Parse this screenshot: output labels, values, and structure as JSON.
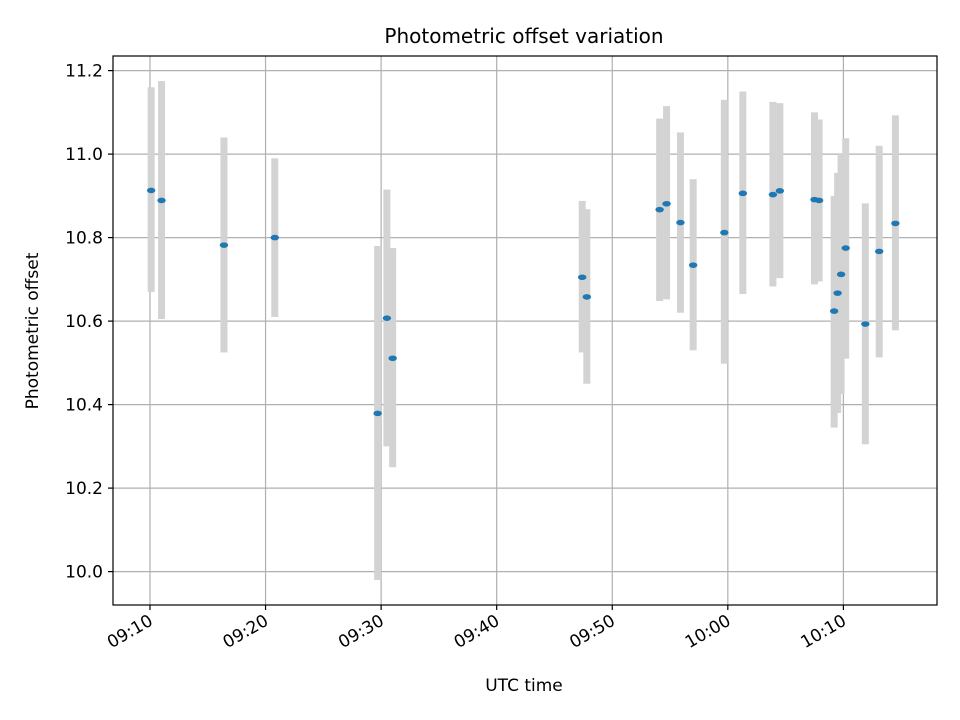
{
  "chart_data": {
    "type": "scatter",
    "title": "Photometric offset variation",
    "xlabel": "UTC time",
    "ylabel": "Photometric offset",
    "x_tick_labels": [
      "09:10",
      "09:20",
      "09:30",
      "09:40",
      "09:50",
      "10:00",
      "10:10"
    ],
    "x_ticks": [
      "09:10",
      "09:20",
      "09:30",
      "09:40",
      "09:50",
      "10:00",
      "10:10"
    ],
    "xlim": [
      "09:06.8",
      "10:18.1"
    ],
    "y_tick_labels": [
      "10.0",
      "10.2",
      "10.4",
      "10.6",
      "10.8",
      "11.0",
      "11.2"
    ],
    "y_ticks": [
      10.0,
      10.2,
      10.4,
      10.6,
      10.8,
      11.0,
      11.2
    ],
    "ylim": [
      9.92,
      11.235
    ],
    "grid": true,
    "colors": {
      "marker": "#1f77b4",
      "errorbar": "#d3d3d3",
      "grid": "#b0b0b0"
    },
    "series": [
      {
        "points": [
          {
            "x": "09:10.1",
            "y": 10.913,
            "low": 10.67,
            "high": 11.16
          },
          {
            "x": "09:11.0",
            "y": 10.889,
            "low": 10.605,
            "high": 11.175
          },
          {
            "x": "09:16.4",
            "y": 10.782,
            "low": 10.525,
            "high": 11.04
          },
          {
            "x": "09:20.8",
            "y": 10.8,
            "low": 10.61,
            "high": 10.99
          },
          {
            "x": "09:29.7",
            "y": 10.379,
            "low": 9.98,
            "high": 10.78
          },
          {
            "x": "09:30.5",
            "y": 10.607,
            "low": 10.3,
            "high": 10.915
          },
          {
            "x": "09:31.0",
            "y": 10.511,
            "low": 10.25,
            "high": 10.775
          },
          {
            "x": "09:47.4",
            "y": 10.705,
            "low": 10.525,
            "high": 10.888
          },
          {
            "x": "09:47.8",
            "y": 10.658,
            "low": 10.45,
            "high": 10.868
          },
          {
            "x": "09:54.1",
            "y": 10.867,
            "low": 10.648,
            "high": 11.085
          },
          {
            "x": "09:54.7",
            "y": 10.881,
            "low": 10.652,
            "high": 11.115
          },
          {
            "x": "09:55.9",
            "y": 10.836,
            "low": 10.62,
            "high": 11.052
          },
          {
            "x": "09:57.0",
            "y": 10.734,
            "low": 10.53,
            "high": 10.94
          },
          {
            "x": "09:59.7",
            "y": 10.812,
            "low": 10.498,
            "high": 11.13
          },
          {
            "x": "10:01.3",
            "y": 10.906,
            "low": 10.665,
            "high": 11.15
          },
          {
            "x": "10:03.9",
            "y": 10.903,
            "low": 10.683,
            "high": 11.125
          },
          {
            "x": "10:04.5",
            "y": 10.912,
            "low": 10.703,
            "high": 11.122
          },
          {
            "x": "10:07.5",
            "y": 10.891,
            "low": 10.688,
            "high": 11.1
          },
          {
            "x": "10:07.9",
            "y": 10.889,
            "low": 10.695,
            "high": 11.083
          },
          {
            "x": "10:09.2",
            "y": 10.624,
            "low": 10.345,
            "high": 10.9
          },
          {
            "x": "10:09.5",
            "y": 10.667,
            "low": 10.38,
            "high": 10.955
          },
          {
            "x": "10:09.8",
            "y": 10.712,
            "low": 10.425,
            "high": 11.0
          },
          {
            "x": "10:10.2",
            "y": 10.775,
            "low": 10.51,
            "high": 11.038
          },
          {
            "x": "10:11.9",
            "y": 10.593,
            "low": 10.305,
            "high": 10.882
          },
          {
            "x": "10:13.1",
            "y": 10.767,
            "low": 10.513,
            "high": 11.02
          },
          {
            "x": "10:14.5",
            "y": 10.834,
            "low": 10.578,
            "high": 11.093
          }
        ]
      }
    ]
  }
}
